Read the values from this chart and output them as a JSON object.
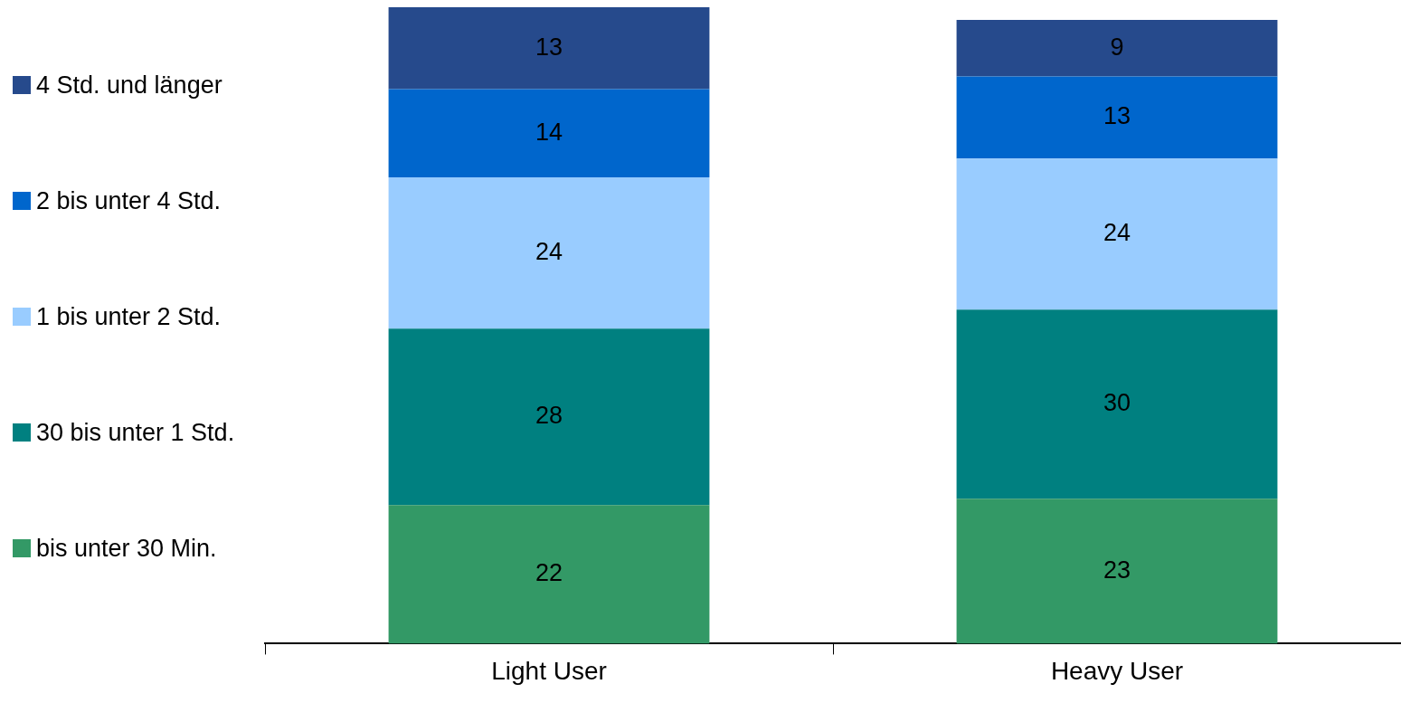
{
  "chart_data": {
    "type": "bar",
    "stacked": true,
    "data_labels": true,
    "legend": "left",
    "grid": false,
    "categories": [
      "Light User",
      "Heavy User"
    ],
    "series": [
      {
        "name": "bis unter 30 Min.",
        "color": "#339966",
        "values": [
          22,
          23
        ]
      },
      {
        "name": "30 bis unter 1 Std.",
        "color": "#008080",
        "values": [
          28,
          30
        ]
      },
      {
        "name": "1 bis unter 2 Std.",
        "color": "#99ccff",
        "values": [
          24,
          24
        ]
      },
      {
        "name": "2 bis unter 4 Std.",
        "color": "#0066cc",
        "values": [
          14,
          13
        ]
      },
      {
        "name": "4 Std. und länger",
        "color": "#264a8c",
        "values": [
          13,
          9
        ]
      }
    ]
  }
}
